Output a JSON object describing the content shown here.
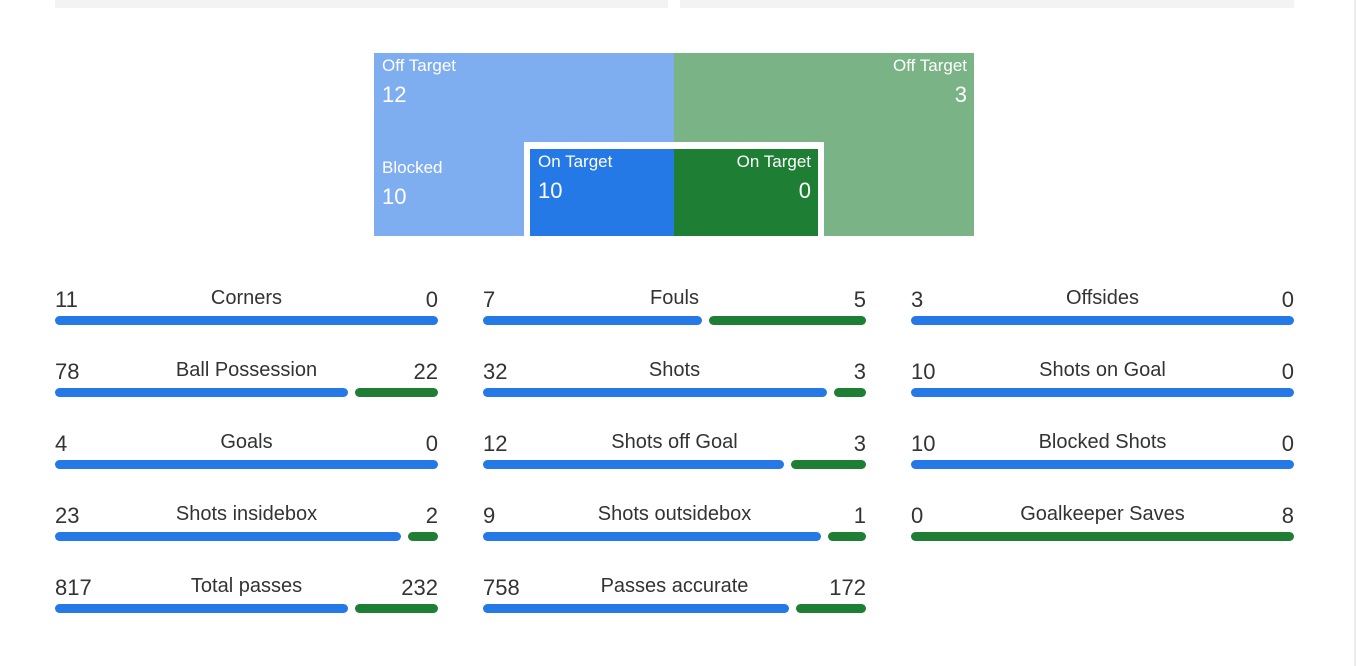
{
  "colors": {
    "home": "#2579e6",
    "away": "#1e7f34",
    "home_light": "#7faef0",
    "away_light": "#7ab386"
  },
  "shotmap": {
    "home_off_target": {
      "label": "Off Target",
      "value": "12"
    },
    "away_off_target": {
      "label": "Off Target",
      "value": "3"
    },
    "home_blocked": {
      "label": "Blocked",
      "value": "10"
    },
    "home_on_target": {
      "label": "On Target",
      "value": "10"
    },
    "away_on_target": {
      "label": "On Target",
      "value": "0"
    }
  },
  "stats": [
    {
      "name": "Corners",
      "home": "11",
      "away": "0",
      "home_share": 1.0
    },
    {
      "name": "Fouls",
      "home": "7",
      "away": "5",
      "home_share": 0.583
    },
    {
      "name": "Offsides",
      "home": "3",
      "away": "0",
      "home_share": 1.0
    },
    {
      "name": "Ball Possession",
      "home": "78",
      "away": "22",
      "home_share": 0.78
    },
    {
      "name": "Shots",
      "home": "32",
      "away": "3",
      "home_share": 0.914
    },
    {
      "name": "Shots on Goal",
      "home": "10",
      "away": "0",
      "home_share": 1.0
    },
    {
      "name": "Goals",
      "home": "4",
      "away": "0",
      "home_share": 1.0
    },
    {
      "name": "Shots off Goal",
      "home": "12",
      "away": "3",
      "home_share": 0.8
    },
    {
      "name": "Blocked Shots",
      "home": "10",
      "away": "0",
      "home_share": 1.0
    },
    {
      "name": "Shots insidebox",
      "home": "23",
      "away": "2",
      "home_share": 0.92
    },
    {
      "name": "Shots outsidebox",
      "home": "9",
      "away": "1",
      "home_share": 0.9
    },
    {
      "name": "Goalkeeper Saves",
      "home": "0",
      "away": "8",
      "home_share": 0.0
    },
    {
      "name": "Total passes",
      "home": "817",
      "away": "232",
      "home_share": 0.779
    },
    {
      "name": "Passes accurate",
      "home": "758",
      "away": "172",
      "home_share": 0.815
    }
  ]
}
